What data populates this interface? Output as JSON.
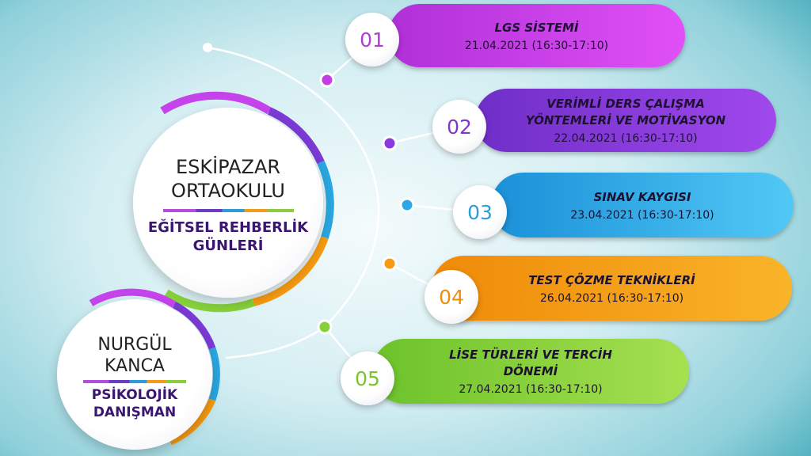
{
  "school": {
    "name_line1": "ESKİPAZAR",
    "name_line2": "ORTAOKULU",
    "event_line1": "EĞİTSEL REHBERLİK",
    "event_line2": "GÜNLERİ"
  },
  "counselor": {
    "name_line1": "NURGÜL",
    "name_line2": "KANCA",
    "title_line1": "PSİKOLOJİK",
    "title_line2": "DANIŞMAN"
  },
  "sessions": [
    {
      "number": "01",
      "title": "LGS SİSTEMİ",
      "date": "21.04.2021 (16:30-17:10)",
      "color": "#cf3ff0"
    },
    {
      "number": "02",
      "title_line1": "VERİMLİ DERS ÇALIŞMA",
      "title_line2": "YÖNTEMLERİ VE MOTİVASYON",
      "date": "22.04.2021 (16:30-17:10)",
      "color": "#8a3ade"
    },
    {
      "number": "03",
      "title": "SINAV KAYGISI",
      "date": "23.04.2021 (16:30-17:10)",
      "color": "#2aa9e6"
    },
    {
      "number": "04",
      "title": "TEST ÇÖZME TEKNİKLERİ",
      "date": "26.04.2021 (16:30-17:10)",
      "color": "#f59a12"
    },
    {
      "number": "05",
      "title_line1": "LİSE TÜRLERİ VE TERCİH",
      "title_line2": "DÖNEMİ",
      "date": "27.04.2021 (16:30-17:10)",
      "color": "#86d03a"
    }
  ]
}
